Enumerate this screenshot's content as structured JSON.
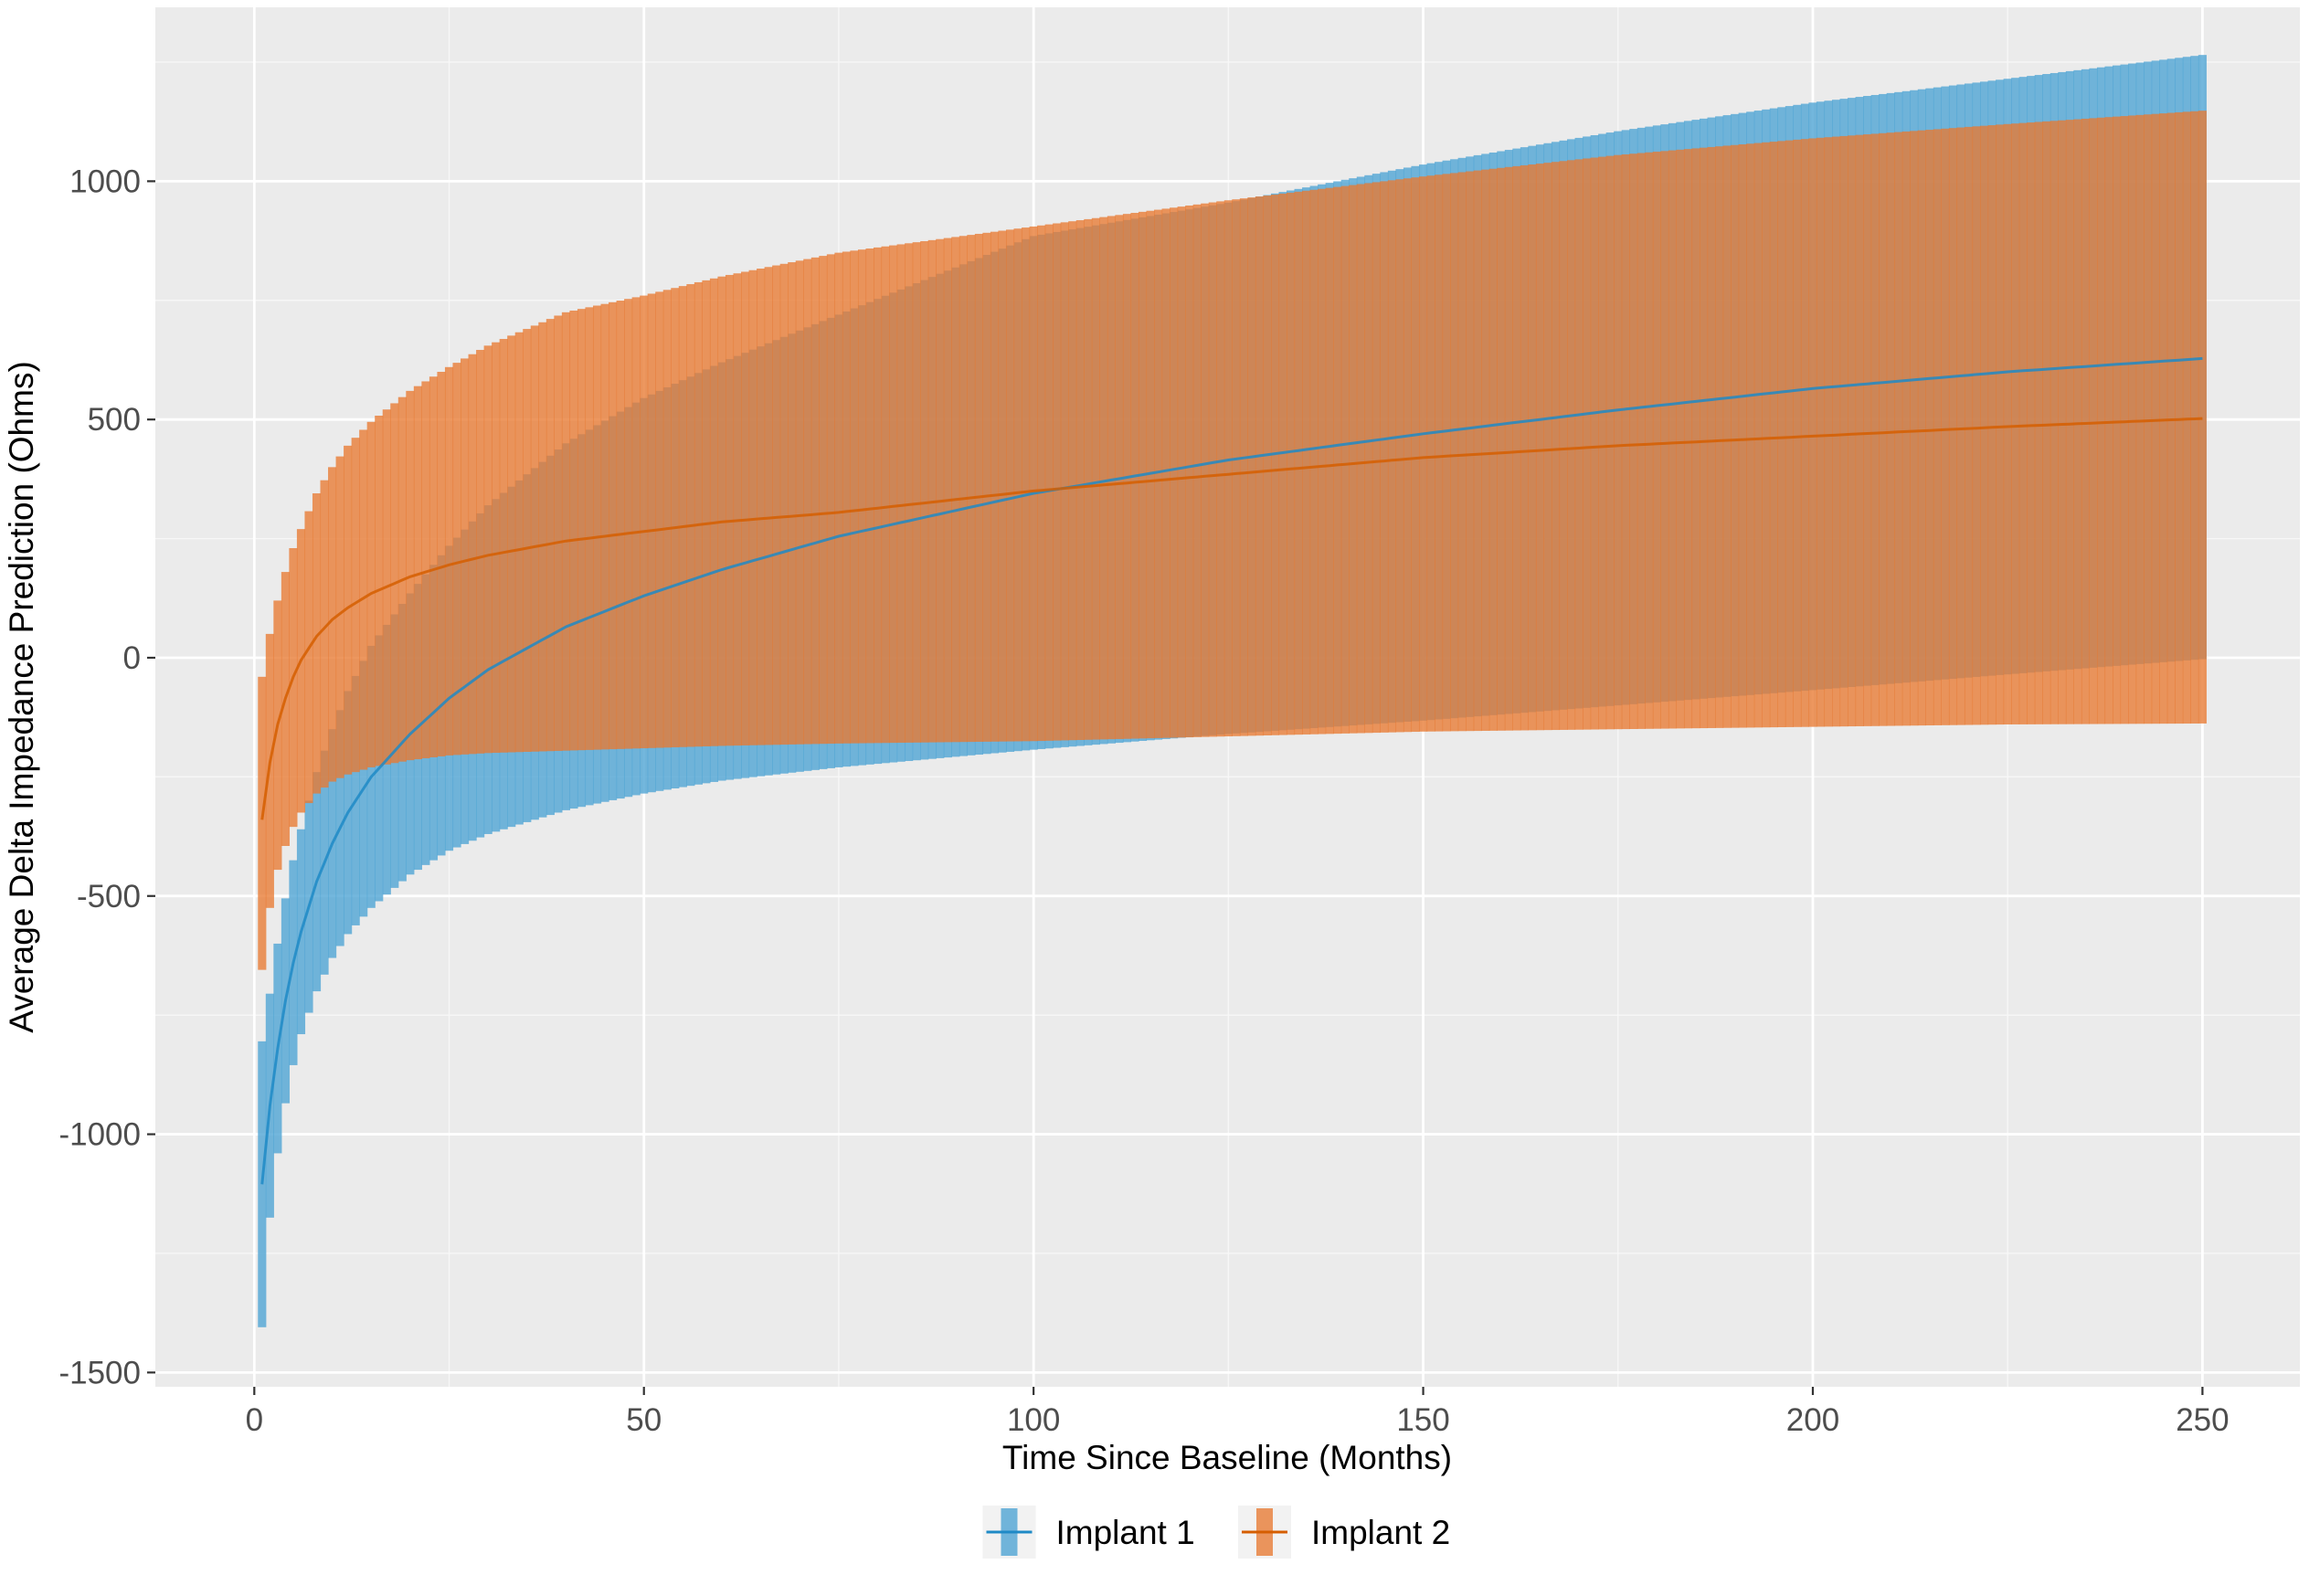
{
  "chart_data": {
    "type": "line",
    "title": "",
    "xlabel": "Time Since Baseline (Months)",
    "ylabel": "Average Delta Impedance Prediction (Ohms)",
    "xlim": [
      -12.7,
      262.5
    ],
    "ylim": [
      -1530,
      1365
    ],
    "x_ticks": [
      0,
      50,
      100,
      150,
      200,
      250
    ],
    "x_tick_labels": [
      "0",
      "50",
      "100",
      "150",
      "200",
      "250"
    ],
    "y_ticks": [
      -1500,
      -1000,
      -500,
      0,
      500,
      1000
    ],
    "y_tick_labels": [
      "-1500",
      "-1000",
      "-500",
      "0",
      "500",
      "1000"
    ],
    "grid": true,
    "legend_position": "bottom",
    "x": [
      1,
      2,
      3,
      4,
      5,
      6,
      8,
      10,
      12,
      15,
      20,
      25,
      30,
      40,
      50,
      60,
      75,
      100,
      125,
      150,
      175,
      200,
      225,
      250
    ],
    "series": [
      {
        "name": "Implant 1",
        "color": "#1f8ac6",
        "band_color": "#4ba3d3",
        "values": [
          -1105,
          -940,
          -820,
          -720,
          -640,
          -575,
          -470,
          -390,
          -325,
          -250,
          -160,
          -85,
          -25,
          65,
          130,
          185,
          255,
          345,
          415,
          470,
          520,
          565,
          600,
          628
        ],
        "lower": [
          -1405,
          -1175,
          -1040,
          -935,
          -855,
          -790,
          -700,
          -630,
          -580,
          -525,
          -455,
          -405,
          -370,
          -320,
          -285,
          -258,
          -230,
          -193,
          -160,
          -132,
          -100,
          -68,
          -35,
          -3
        ],
        "upper": [
          -805,
          -705,
          -600,
          -505,
          -425,
          -360,
          -240,
          -150,
          -70,
          25,
          135,
          235,
          320,
          450,
          545,
          620,
          720,
          885,
          955,
          1035,
          1105,
          1165,
          1215,
          1265
        ]
      },
      {
        "name": "Implant 2",
        "color": "#d55e00",
        "band_color": "#e87a32",
        "values": [
          -340,
          -220,
          -140,
          -85,
          -40,
          -5,
          45,
          80,
          105,
          135,
          170,
          195,
          215,
          245,
          265,
          285,
          305,
          350,
          385,
          420,
          445,
          465,
          485,
          502
        ],
        "lower": [
          -655,
          -525,
          -445,
          -395,
          -355,
          -325,
          -285,
          -260,
          -245,
          -230,
          -215,
          -205,
          -200,
          -195,
          -190,
          -185,
          -180,
          -175,
          -165,
          -155,
          -150,
          -145,
          -140,
          -138
        ],
        "upper": [
          -40,
          50,
          120,
          180,
          230,
          270,
          345,
          400,
          445,
          495,
          560,
          610,
          655,
          725,
          760,
          800,
          850,
          905,
          960,
          1010,
          1055,
          1090,
          1120,
          1148
        ]
      }
    ]
  }
}
